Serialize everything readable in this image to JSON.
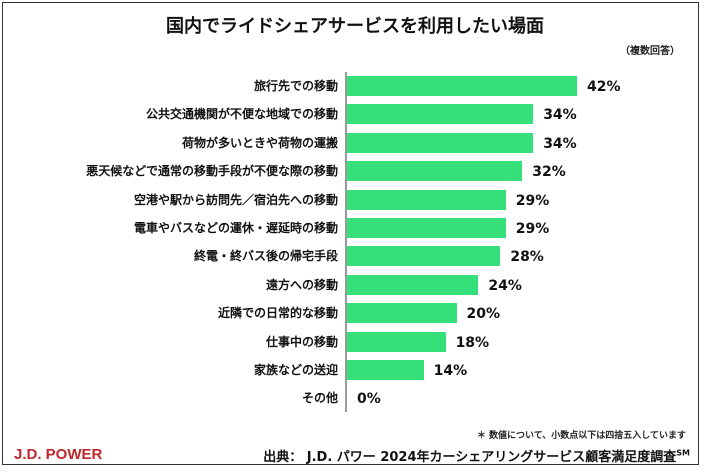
{
  "chart_data": {
    "type": "bar",
    "orientation": "horizontal",
    "title": "国内でライドシェアサービスを利用したい場面",
    "note": "（複数回答）",
    "categories": [
      "旅行先での移動",
      "公共交通機関が不便な地域での移動",
      "荷物が多いときや荷物の運搬",
      "悪天候などで通常の移動手段が不便な際の移動",
      "空港や駅から訪問先／宿泊先への移動",
      "電車やバスなどの運休・遅延時の移動",
      "終電・終バス後の帰宅手段",
      "遠方への移動",
      "近隣での日常的な移動",
      "仕事中の移動",
      "家族などの送迎",
      "その他"
    ],
    "values": [
      42,
      34,
      34,
      32,
      29,
      29,
      28,
      24,
      20,
      18,
      14,
      0
    ],
    "value_labels": [
      "42%",
      "34%",
      "34%",
      "32%",
      "29%",
      "29%",
      "28%",
      "24%",
      "20%",
      "18%",
      "14%",
      "0%"
    ],
    "unit": "%",
    "xlim": [
      0,
      42
    ],
    "bar_color": "#35e07a",
    "grid": false
  },
  "footer": {
    "rounding_note": "＊ 数値について、小数点以下は四捨五入しています",
    "source": "出典： J.D. パワー 2024年カーシェアリングサービス顧客満足度調査",
    "source_mark": "SM",
    "logo": "J.D. POWER"
  }
}
